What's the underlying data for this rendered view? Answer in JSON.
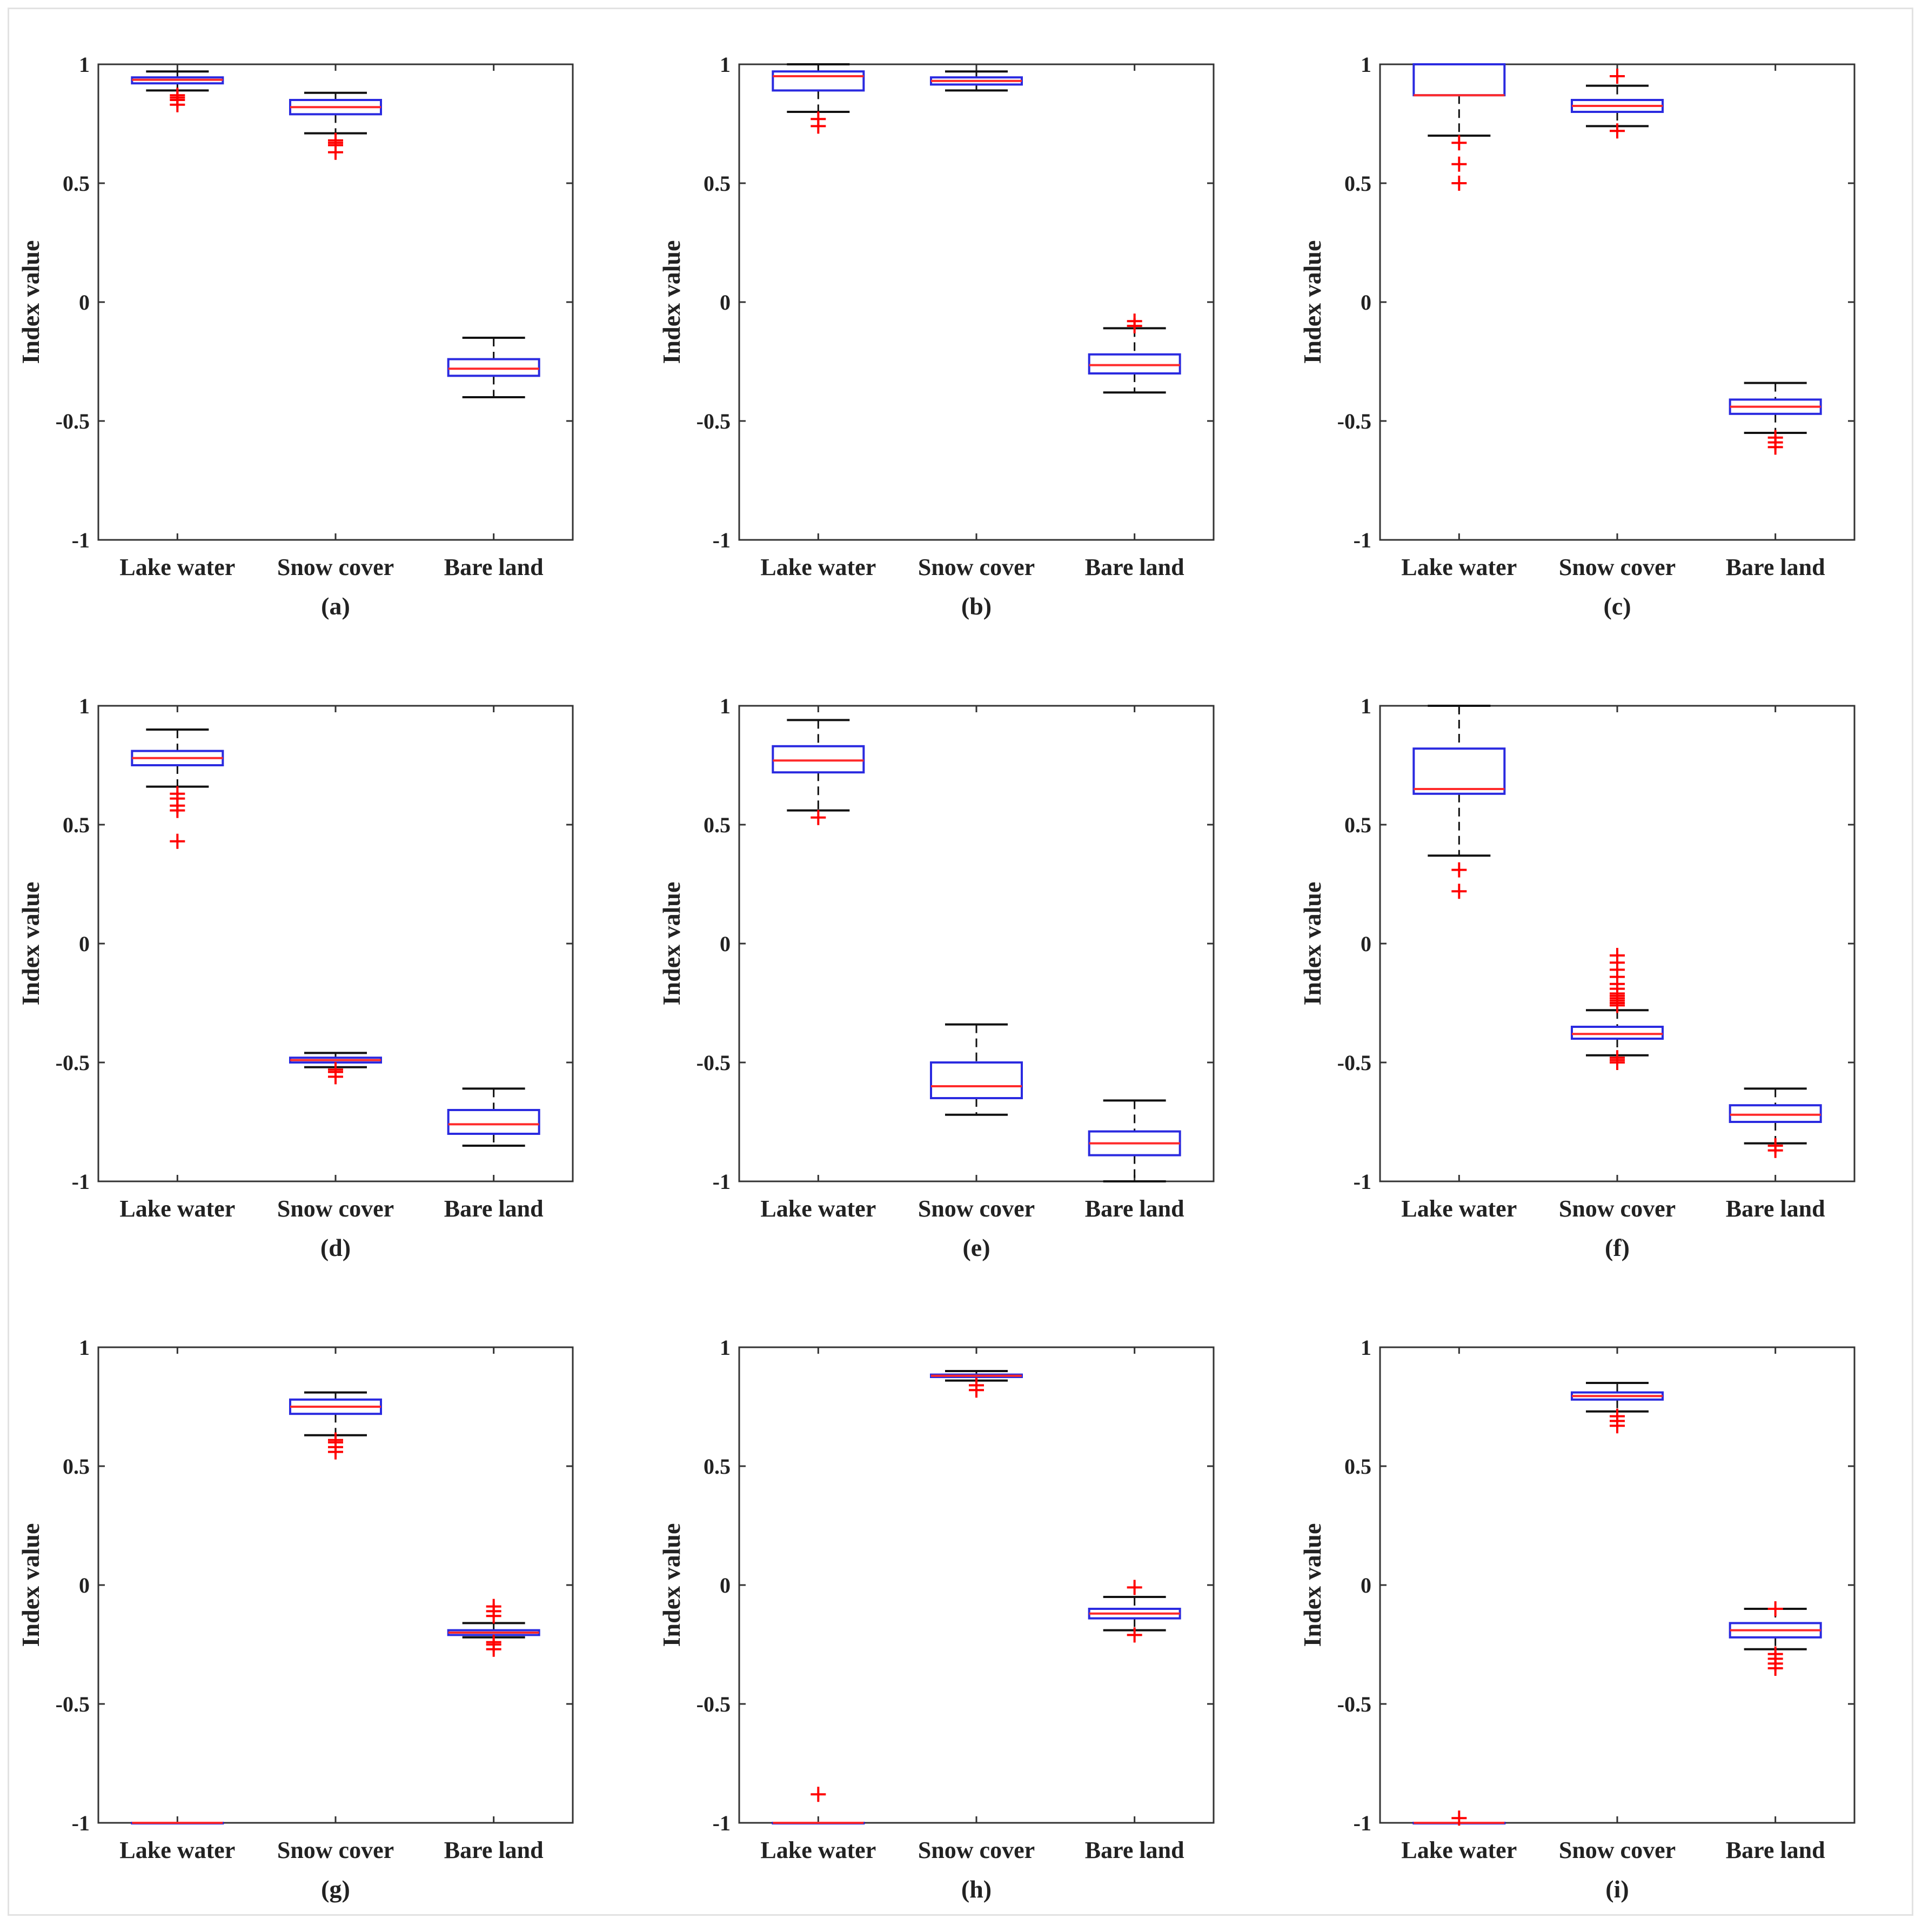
{
  "figure": {
    "ylabel": "Index value",
    "colors": {
      "box": "#2a2ae0",
      "median": "#ff2a2a",
      "whisker": "#111111",
      "outlier": "#ff0000",
      "axis": "#333333"
    }
  },
  "chart_data": [
    {
      "type": "box",
      "panel_label": "(a)",
      "ylabel": "Index value",
      "ylim": [
        -1,
        1
      ],
      "yticks": [
        -1,
        -0.5,
        0,
        0.5,
        1
      ],
      "ytick_labels": [
        "-1",
        "-0.5",
        "0",
        "0.5",
        "1"
      ],
      "categories": [
        "Lake water",
        "Snow cover",
        "Bare land"
      ],
      "boxes": [
        {
          "category": "Lake water",
          "whisker_low": 0.89,
          "q1": 0.92,
          "median": 0.935,
          "q3": 0.945,
          "whisker_high": 0.97,
          "outliers": [
            0.87,
            0.86,
            0.85,
            0.83
          ]
        },
        {
          "category": "Snow cover",
          "whisker_low": 0.71,
          "q1": 0.79,
          "median": 0.82,
          "q3": 0.85,
          "whisker_high": 0.88,
          "outliers": [
            0.68,
            0.67,
            0.66,
            0.63
          ]
        },
        {
          "category": "Bare land",
          "whisker_low": -0.4,
          "q1": -0.31,
          "median": -0.28,
          "q3": -0.24,
          "whisker_high": -0.15,
          "outliers": []
        }
      ]
    },
    {
      "type": "box",
      "panel_label": "(b)",
      "ylabel": "Index value",
      "ylim": [
        -1,
        1
      ],
      "yticks": [
        -1,
        -0.5,
        0,
        0.5,
        1
      ],
      "ytick_labels": [
        "-1",
        "-0.5",
        "0",
        "0.5",
        "1"
      ],
      "categories": [
        "Lake water",
        "Snow cover",
        "Bare land"
      ],
      "boxes": [
        {
          "category": "Lake water",
          "whisker_low": 0.8,
          "q1": 0.89,
          "median": 0.95,
          "q3": 0.97,
          "whisker_high": 1.0,
          "outliers": [
            0.77,
            0.74
          ]
        },
        {
          "category": "Snow cover",
          "whisker_low": 0.89,
          "q1": 0.915,
          "median": 0.93,
          "q3": 0.945,
          "whisker_high": 0.97,
          "outliers": []
        },
        {
          "category": "Bare land",
          "whisker_low": -0.38,
          "q1": -0.3,
          "median": -0.265,
          "q3": -0.22,
          "whisker_high": -0.11,
          "outliers": [
            -0.08,
            -0.1
          ]
        }
      ]
    },
    {
      "type": "box",
      "panel_label": "(c)",
      "ylabel": "Index value",
      "ylim": [
        -1,
        1
      ],
      "yticks": [
        -1,
        -0.5,
        0,
        0.5,
        1
      ],
      "ytick_labels": [
        "-1",
        "-0.5",
        "0",
        "0.5",
        "1"
      ],
      "categories": [
        "Lake water",
        "Snow cover",
        "Bare land"
      ],
      "boxes": [
        {
          "category": "Lake water",
          "whisker_low": 0.7,
          "q1": 0.87,
          "median": 0.87,
          "q3": 1.0,
          "whisker_high": 1.0,
          "outliers": [
            0.67,
            0.58,
            0.5
          ]
        },
        {
          "category": "Snow cover",
          "whisker_low": 0.74,
          "q1": 0.8,
          "median": 0.825,
          "q3": 0.85,
          "whisker_high": 0.91,
          "outliers": [
            0.95,
            0.72
          ]
        },
        {
          "category": "Bare land",
          "whisker_low": -0.55,
          "q1": -0.47,
          "median": -0.44,
          "q3": -0.41,
          "whisker_high": -0.34,
          "outliers": [
            -0.57,
            -0.59,
            -0.61
          ]
        }
      ]
    },
    {
      "type": "box",
      "panel_label": "(d)",
      "ylabel": "Index value",
      "ylim": [
        -1,
        1
      ],
      "yticks": [
        -1,
        -0.5,
        0,
        0.5,
        1
      ],
      "ytick_labels": [
        "-1",
        "-0.5",
        "0",
        "0.5",
        "1"
      ],
      "categories": [
        "Lake water",
        "Snow cover",
        "Bare land"
      ],
      "boxes": [
        {
          "category": "Lake water",
          "whisker_low": 0.66,
          "q1": 0.75,
          "median": 0.78,
          "q3": 0.81,
          "whisker_high": 0.9,
          "outliers": [
            0.63,
            0.61,
            0.58,
            0.56,
            0.43
          ]
        },
        {
          "category": "Snow cover",
          "whisker_low": -0.52,
          "q1": -0.5,
          "median": -0.49,
          "q3": -0.48,
          "whisker_high": -0.46,
          "outliers": [
            -0.53,
            -0.54,
            -0.56
          ]
        },
        {
          "category": "Bare land",
          "whisker_low": -0.85,
          "q1": -0.8,
          "median": -0.76,
          "q3": -0.7,
          "whisker_high": -0.61,
          "outliers": []
        }
      ]
    },
    {
      "type": "box",
      "panel_label": "(e)",
      "ylabel": "Index value",
      "ylim": [
        -1,
        1
      ],
      "yticks": [
        -1,
        -0.5,
        0,
        0.5,
        1
      ],
      "ytick_labels": [
        "-1",
        "-0.5",
        "0",
        "0.5",
        "1"
      ],
      "categories": [
        "Lake water",
        "Snow cover",
        "Bare land"
      ],
      "boxes": [
        {
          "category": "Lake water",
          "whisker_low": 0.56,
          "q1": 0.72,
          "median": 0.77,
          "q3": 0.83,
          "whisker_high": 0.94,
          "outliers": [
            0.53
          ]
        },
        {
          "category": "Snow cover",
          "whisker_low": -0.72,
          "q1": -0.65,
          "median": -0.6,
          "q3": -0.5,
          "whisker_high": -0.34,
          "outliers": []
        },
        {
          "category": "Bare land",
          "whisker_low": -1.0,
          "q1": -0.89,
          "median": -0.84,
          "q3": -0.79,
          "whisker_high": -0.66,
          "outliers": []
        }
      ]
    },
    {
      "type": "box",
      "panel_label": "(f)",
      "ylabel": "Index value",
      "ylim": [
        -1,
        1
      ],
      "yticks": [
        -1,
        -0.5,
        0,
        0.5,
        1
      ],
      "ytick_labels": [
        "-1",
        "-0.5",
        "0",
        "0.5",
        "1"
      ],
      "categories": [
        "Lake water",
        "Snow cover",
        "Bare land"
      ],
      "boxes": [
        {
          "category": "Lake water",
          "whisker_low": 0.37,
          "q1": 0.63,
          "median": 0.65,
          "q3": 0.82,
          "whisker_high": 1.0,
          "outliers": [
            0.31,
            0.22
          ]
        },
        {
          "category": "Snow cover",
          "whisker_low": -0.47,
          "q1": -0.4,
          "median": -0.38,
          "q3": -0.35,
          "whisker_high": -0.28,
          "outliers": [
            -0.05,
            -0.08,
            -0.11,
            -0.14,
            -0.17,
            -0.19,
            -0.21,
            -0.22,
            -0.23,
            -0.24,
            -0.25,
            -0.26,
            -0.48,
            -0.49,
            -0.5
          ]
        },
        {
          "category": "Bare land",
          "whisker_low": -0.84,
          "q1": -0.75,
          "median": -0.72,
          "q3": -0.68,
          "whisker_high": -0.61,
          "outliers": [
            -0.85,
            -0.87
          ]
        }
      ]
    },
    {
      "type": "box",
      "panel_label": "(g)",
      "ylabel": "Index value",
      "ylim": [
        -1,
        1
      ],
      "yticks": [
        -1,
        -0.5,
        0,
        0.5,
        1
      ],
      "ytick_labels": [
        "-1",
        "-0.5",
        "0",
        "0.5",
        "1"
      ],
      "categories": [
        "Lake water",
        "Snow cover",
        "Bare land"
      ],
      "boxes": [
        {
          "category": "Lake water",
          "whisker_low": -1.0,
          "q1": -1.0,
          "median": -1.0,
          "q3": -1.0,
          "whisker_high": -1.0,
          "outliers": []
        },
        {
          "category": "Snow cover",
          "whisker_low": 0.63,
          "q1": 0.72,
          "median": 0.75,
          "q3": 0.78,
          "whisker_high": 0.81,
          "outliers": [
            0.61,
            0.6,
            0.58,
            0.56
          ]
        },
        {
          "category": "Bare land",
          "whisker_low": -0.22,
          "q1": -0.21,
          "median": -0.2,
          "q3": -0.19,
          "whisker_high": -0.16,
          "outliers": [
            -0.09,
            -0.11,
            -0.13,
            -0.24,
            -0.25,
            -0.27
          ]
        }
      ]
    },
    {
      "type": "box",
      "panel_label": "(h)",
      "ylabel": "Index value",
      "ylim": [
        -1,
        1
      ],
      "yticks": [
        -1,
        -0.5,
        0,
        0.5,
        1
      ],
      "ytick_labels": [
        "-1",
        "-0.5",
        "0",
        "0.5",
        "1"
      ],
      "categories": [
        "Lake water",
        "Snow cover",
        "Bare land"
      ],
      "boxes": [
        {
          "category": "Lake water",
          "whisker_low": -1.0,
          "q1": -1.0,
          "median": -1.0,
          "q3": -1.0,
          "whisker_high": -1.0,
          "outliers": [
            -0.88
          ]
        },
        {
          "category": "Snow cover",
          "whisker_low": 0.86,
          "q1": 0.875,
          "median": 0.88,
          "q3": 0.885,
          "whisker_high": 0.9,
          "outliers": [
            0.84,
            0.82
          ]
        },
        {
          "category": "Bare land",
          "whisker_low": -0.19,
          "q1": -0.14,
          "median": -0.12,
          "q3": -0.1,
          "whisker_high": -0.05,
          "outliers": [
            -0.01,
            -0.21
          ]
        }
      ]
    },
    {
      "type": "box",
      "panel_label": "(i)",
      "ylabel": "Index value",
      "ylim": [
        -1,
        1
      ],
      "yticks": [
        -1,
        -0.5,
        0,
        0.5,
        1
      ],
      "ytick_labels": [
        "-1",
        "-0.5",
        "0",
        "0.5",
        "1"
      ],
      "categories": [
        "Lake water",
        "Snow cover",
        "Bare land"
      ],
      "boxes": [
        {
          "category": "Lake water",
          "whisker_low": -1.0,
          "q1": -1.0,
          "median": -1.0,
          "q3": -1.0,
          "whisker_high": -1.0,
          "outliers": [
            -0.98
          ]
        },
        {
          "category": "Snow cover",
          "whisker_low": 0.73,
          "q1": 0.78,
          "median": 0.795,
          "q3": 0.81,
          "whisker_high": 0.85,
          "outliers": [
            0.71,
            0.69,
            0.67
          ]
        },
        {
          "category": "Bare land",
          "whisker_low": -0.27,
          "q1": -0.22,
          "median": -0.19,
          "q3": -0.16,
          "whisker_high": -0.1,
          "outliers": [
            -0.1,
            -0.29,
            -0.31,
            -0.33,
            -0.35
          ]
        }
      ]
    }
  ]
}
